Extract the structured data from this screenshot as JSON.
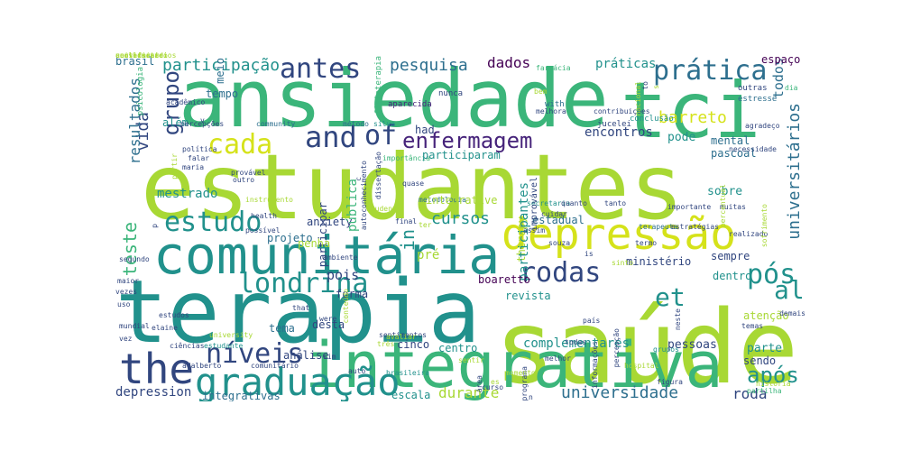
{
  "palette": {
    "lime": "#a8d834",
    "yellowgreen": "#7cc84a",
    "green": "#3bb57a",
    "teal": "#21918c",
    "steelblue": "#2d6f8e",
    "navy": "#31467f",
    "indigo": "#46237a",
    "purple": "#440154",
    "yellow": "#d5e21a"
  },
  "words": [
    {
      "text": "estudantes",
      "color": "lime"
    },
    {
      "text": "saúde",
      "color": "lime"
    },
    {
      "text": "ansiedade",
      "color": "green"
    },
    {
      "text": "terapia",
      "color": "teal"
    },
    {
      "text": "tci",
      "color": "green"
    },
    {
      "text": "integrativa",
      "color": "green"
    },
    {
      "text": "comunitária",
      "color": "teal"
    },
    {
      "text": "depressão",
      "color": "yellow"
    },
    {
      "text": "the",
      "color": "navy"
    },
    {
      "text": "graduação",
      "color": "teal"
    },
    {
      "text": "níveis",
      "color": "navy"
    },
    {
      "text": "estudo",
      "color": "teal"
    },
    {
      "text": "enfermagem",
      "color": "indigo"
    },
    {
      "text": "cada",
      "color": "yellow"
    },
    {
      "text": "and",
      "color": "navy"
    },
    {
      "text": "of",
      "color": "navy"
    },
    {
      "text": "prática",
      "color": "steelblue"
    },
    {
      "text": "antes",
      "color": "navy"
    },
    {
      "text": "pós",
      "color": "teal"
    },
    {
      "text": "rodas",
      "color": "navy"
    },
    {
      "text": "londrina",
      "color": "teal"
    },
    {
      "text": "al",
      "color": "teal"
    },
    {
      "text": "et",
      "color": "teal"
    },
    {
      "text": "após",
      "color": "teal"
    },
    {
      "text": "universidade",
      "color": "steelblue"
    },
    {
      "text": "grupo",
      "color": "navy"
    },
    {
      "text": "participação",
      "color": "teal"
    },
    {
      "text": "pesquisa",
      "color": "steelblue"
    },
    {
      "text": "barreto",
      "color": "yellow"
    },
    {
      "text": "cursos",
      "color": "teal"
    },
    {
      "text": "durante",
      "color": "lime"
    },
    {
      "text": "roda",
      "color": "navy"
    },
    {
      "text": "integrativas",
      "color": "steelblue"
    },
    {
      "text": "universitários",
      "color": "steelblue"
    },
    {
      "text": "todos",
      "color": "steelblue"
    },
    {
      "text": "práticas",
      "color": "teal"
    },
    {
      "text": "dados",
      "color": "purple"
    },
    {
      "text": "espaço",
      "color": "purple"
    },
    {
      "text": "mental",
      "color": "steelblue"
    },
    {
      "text": "pascoal",
      "color": "steelblue"
    },
    {
      "text": "encontros",
      "color": "navy"
    },
    {
      "text": "pode",
      "color": "teal"
    },
    {
      "text": "sobre",
      "color": "teal"
    },
    {
      "text": "mestrado",
      "color": "teal"
    },
    {
      "text": "vida",
      "color": "navy"
    },
    {
      "text": "resultados",
      "color": "steelblue"
    },
    {
      "text": "teste",
      "color": "green"
    },
    {
      "text": "tempo",
      "color": "steelblue"
    },
    {
      "text": "além",
      "color": "teal"
    },
    {
      "text": "anxiety",
      "color": "navy"
    },
    {
      "text": "projeto",
      "color": "steelblue"
    },
    {
      "text": "pois",
      "color": "navy"
    },
    {
      "text": "in",
      "color": "teal"
    },
    {
      "text": "forma",
      "color": "navy"
    },
    {
      "text": "therapy",
      "color": "lime"
    },
    {
      "text": "participantes",
      "color": "teal"
    },
    {
      "text": "estadual",
      "color": "steelblue"
    },
    {
      "text": "ministério",
      "color": "navy"
    },
    {
      "text": "sempre",
      "color": "navy"
    },
    {
      "text": "dentro",
      "color": "teal"
    },
    {
      "text": "boaretto",
      "color": "purple"
    },
    {
      "text": "revista",
      "color": "teal"
    },
    {
      "text": "complementares",
      "color": "teal"
    },
    {
      "text": "pessoas",
      "color": "navy"
    },
    {
      "text": "parte",
      "color": "teal"
    },
    {
      "text": "sendo",
      "color": "navy"
    },
    {
      "text": "atenção",
      "color": "lime"
    },
    {
      "text": "tema",
      "color": "steelblue"
    },
    {
      "text": "desta",
      "color": "navy"
    },
    {
      "text": "análise",
      "color": "navy"
    },
    {
      "text": "depression",
      "color": "navy"
    },
    {
      "text": "escala",
      "color": "teal"
    },
    {
      "text": "cinco",
      "color": "navy"
    },
    {
      "text": "centro",
      "color": "teal"
    },
    {
      "text": "participar",
      "color": "navy"
    },
    {
      "text": "pública",
      "color": "green"
    },
    {
      "text": "had",
      "color": "navy"
    },
    {
      "text": "pré",
      "color": "lime"
    },
    {
      "text": "brasil",
      "color": "steelblue"
    },
    {
      "text": "meio",
      "color": "steelblue"
    },
    {
      "text": "acadêmico",
      "color": "navy"
    },
    {
      "text": "psicologia",
      "color": "green"
    },
    {
      "text": "fisioterapia",
      "color": "green"
    },
    {
      "text": "nunca",
      "color": "navy"
    },
    {
      "text": "with",
      "color": "steelblue"
    },
    {
      "text": "farmácia",
      "color": "green"
    },
    {
      "text": "aparecida",
      "color": "indigo"
    },
    {
      "text": "silva",
      "color": "teal"
    },
    {
      "text": "jucelei",
      "color": "navy"
    },
    {
      "text": "contribuições",
      "color": "navy"
    },
    {
      "text": "conclusão",
      "color": "teal"
    },
    {
      "text": "percepções",
      "color": "navy"
    },
    {
      "text": "community",
      "color": "steelblue"
    },
    {
      "text": "método",
      "color": "steelblue"
    },
    {
      "text": "outras",
      "color": "navy"
    },
    {
      "text": "estresse",
      "color": "steelblue"
    },
    {
      "text": "dia",
      "color": "green"
    },
    {
      "text": "agradeço",
      "color": "navy"
    },
    {
      "text": "necessidade",
      "color": "navy"
    },
    {
      "text": "muitas",
      "color": "navy"
    },
    {
      "text": "importante",
      "color": "navy"
    },
    {
      "text": "estratégias",
      "color": "navy"
    },
    {
      "text": "terapeuta",
      "color": "steelblue"
    },
    {
      "text": "realizado",
      "color": "navy"
    },
    {
      "text": "provável",
      "color": "navy"
    },
    {
      "text": "instrumento",
      "color": "lime"
    },
    {
      "text": "health",
      "color": "navy"
    },
    {
      "text": "possível",
      "color": "navy"
    },
    {
      "text": "ambiente",
      "color": "navy"
    },
    {
      "text": "segundo",
      "color": "navy"
    },
    {
      "text": "maior",
      "color": "navy"
    },
    {
      "text": "vezes",
      "color": "navy"
    },
    {
      "text": "uso",
      "color": "navy"
    },
    {
      "text": "estudos",
      "color": "navy"
    },
    {
      "text": "university",
      "color": "lime"
    },
    {
      "text": "mundial",
      "color": "navy"
    },
    {
      "text": "elaine",
      "color": "navy"
    },
    {
      "text": "vez",
      "color": "navy"
    },
    {
      "text": "ciências",
      "color": "navy"
    },
    {
      "text": "estudante",
      "color": "teal"
    },
    {
      "text": "adalberto",
      "color": "navy"
    },
    {
      "text": "comunitário",
      "color": "navy"
    },
    {
      "text": "sentimentos",
      "color": "navy"
    },
    {
      "text": "avaliar",
      "color": "lime"
    },
    {
      "text": "três",
      "color": "lime"
    },
    {
      "text": "conteúdo",
      "color": "lime"
    },
    {
      "text": "autoconhecimento",
      "color": "navy"
    },
    {
      "text": "dissertação",
      "color": "navy"
    },
    {
      "text": "metodologia",
      "color": "steelblue"
    },
    {
      "text": "secretaria",
      "color": "teal"
    },
    {
      "text": "quanto",
      "color": "navy"
    },
    {
      "text": "tanto",
      "color": "navy"
    },
    {
      "text": "cuidar",
      "color": "navy"
    },
    {
      "text": "assim",
      "color": "navy"
    },
    {
      "text": "souza",
      "color": "navy"
    },
    {
      "text": "ter",
      "color": "lime"
    },
    {
      "text": "final",
      "color": "navy"
    },
    {
      "text": "termo",
      "color": "navy"
    },
    {
      "text": "is",
      "color": "navy"
    },
    {
      "text": "sinto",
      "color": "lime"
    },
    {
      "text": "demais",
      "color": "navy"
    },
    {
      "text": "grupos",
      "color": "teal"
    },
    {
      "text": "todas",
      "color": "navy"
    },
    {
      "text": "país",
      "color": "navy"
    },
    {
      "text": "temas",
      "color": "navy"
    },
    {
      "text": "partilha",
      "color": "green"
    },
    {
      "text": "história",
      "color": "lime"
    },
    {
      "text": "figura",
      "color": "navy"
    },
    {
      "text": "hospital",
      "color": "lime"
    },
    {
      "text": "melhor",
      "color": "navy"
    },
    {
      "text": "programa",
      "color": "navy"
    },
    {
      "text": "curso",
      "color": "navy"
    },
    {
      "text": "momento",
      "color": "lime"
    },
    {
      "text": "área",
      "color": "navy"
    },
    {
      "text": "sentir",
      "color": "lime"
    },
    {
      "text": "brasileira",
      "color": "teal"
    },
    {
      "text": "auto",
      "color": "navy"
    },
    {
      "text": "sim",
      "color": "navy"
    },
    {
      "text": "were",
      "color": "navy"
    },
    {
      "text": "that",
      "color": "navy"
    },
    {
      "text": "outro",
      "color": "navy"
    },
    {
      "text": "falar",
      "color": "navy"
    },
    {
      "text": "maria",
      "color": "navy"
    },
    {
      "text": "partir",
      "color": "lime"
    },
    {
      "text": "política",
      "color": "navy"
    },
    {
      "text": "quase",
      "color": "navy"
    },
    {
      "text": "students",
      "color": "lime"
    },
    {
      "text": "bem",
      "color": "lime"
    },
    {
      "text": "melhora",
      "color": "navy"
    },
    {
      "text": "nacional",
      "color": "lime"
    },
    {
      "text": "percepção",
      "color": "navy"
    },
    {
      "text": "informações",
      "color": "navy"
    },
    {
      "text": "neste",
      "color": "navy"
    },
    {
      "text": "improvável",
      "color": "navy"
    },
    {
      "text": "importância",
      "color": "green"
    },
    {
      "text": "participaram",
      "color": "teal"
    },
    {
      "text": "penha",
      "color": "lime"
    },
    {
      "text": "integrative",
      "color": "lime"
    },
    {
      "text": "es",
      "color": "lime"
    },
    {
      "text": "n",
      "color": "navy"
    },
    {
      "text": "v",
      "color": "navy"
    },
    {
      "text": "s",
      "color": "lime"
    },
    {
      "text": "to",
      "color": "navy"
    },
    {
      "text": "c",
      "color": "navy"
    },
    {
      "text": "p",
      "color": "navy"
    },
    {
      "text": "percentual",
      "color": "lime"
    },
    {
      "text": "sofrimento",
      "color": "lime"
    },
    {
      "text": "considerando",
      "color": "lime"
    },
    {
      "text": "acolhimento",
      "color": "lime"
    },
    {
      "text": "certificarei",
      "color": "lime"
    },
    {
      "text": "universitários",
      "color": "lime"
    }
  ]
}
